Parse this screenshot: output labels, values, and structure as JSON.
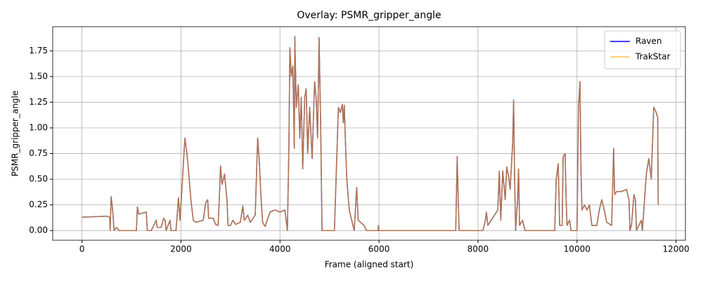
{
  "chart_data": {
    "type": "line",
    "title": "Overlay: PSMR_gripper_angle",
    "x_label": "Frame (aligned start)",
    "y_label": "PSMR_gripper_angle",
    "x": [
      0,
      500,
      560,
      570,
      590,
      620,
      650,
      700,
      750,
      1100,
      1120,
      1150,
      1300,
      1320,
      1400,
      1500,
      1520,
      1600,
      1650,
      1680,
      1700,
      1780,
      1800,
      1900,
      1950,
      1980,
      2000,
      2080,
      2120,
      2150,
      2200,
      2250,
      2300,
      2450,
      2500,
      2540,
      2560,
      2650,
      2700,
      2750,
      2770,
      2800,
      2830,
      2880,
      2930,
      2950,
      3000,
      3050,
      3100,
      3200,
      3250,
      3280,
      3350,
      3400,
      3500,
      3550,
      3580,
      3620,
      3650,
      3700,
      3800,
      3900,
      4000,
      4100,
      4150,
      4180,
      4200,
      4230,
      4260,
      4290,
      4300,
      4330,
      4370,
      4400,
      4430,
      4460,
      4500,
      4530,
      4560,
      4600,
      4650,
      4700,
      4730,
      4760,
      4790,
      4820,
      4850,
      5000,
      5100,
      5150,
      5180,
      5220,
      5260,
      5280,
      5300,
      5320,
      5350,
      5400,
      5450,
      5500,
      5550,
      5580,
      5700,
      5750,
      5980,
      5990,
      6000,
      6250,
      7550,
      7580,
      7600,
      7620,
      8100,
      8150,
      8170,
      8200,
      8400,
      8430,
      8460,
      8500,
      8550,
      8580,
      8620,
      8650,
      8700,
      8720,
      8740,
      8760,
      8800,
      8820,
      8840,
      8900,
      8950,
      9550,
      9580,
      9620,
      9650,
      9700,
      9720,
      9760,
      9780,
      9800,
      9850,
      9880,
      10000,
      10030,
      10060,
      10080,
      10100,
      10150,
      10200,
      10250,
      10300,
      10400,
      10450,
      10500,
      10550,
      10600,
      10700,
      10740,
      10760,
      10800,
      10900,
      11000,
      11050,
      11070,
      11100,
      11150,
      11180,
      11200,
      11300,
      11320,
      11400,
      11450,
      11500,
      11550,
      11600,
      11630,
      11640
    ],
    "series": [
      {
        "name": "Raven",
        "color": "#0000ff",
        "alpha": 1,
        "values": [
          0.13,
          0.14,
          0.13,
          0,
          0.33,
          0.2,
          0,
          0.03,
          0,
          0,
          0.23,
          0.16,
          0.18,
          0,
          0,
          0.1,
          0.03,
          0.03,
          0.12,
          0.1,
          0,
          0.1,
          0,
          0,
          0.32,
          0.1,
          0.25,
          0.9,
          0.75,
          0.6,
          0.3,
          0.1,
          0.08,
          0.1,
          0.27,
          0.3,
          0.12,
          0.12,
          0.06,
          0.05,
          0.25,
          0.63,
          0.45,
          0.55,
          0.3,
          0.05,
          0.05,
          0.1,
          0.06,
          0.08,
          0.24,
          0.1,
          0.15,
          0.08,
          0.15,
          0.9,
          0.7,
          0.3,
          0.08,
          0.04,
          0.18,
          0.2,
          0.18,
          0.2,
          0,
          0.8,
          1.78,
          1.5,
          1.6,
          0.8,
          1.89,
          1.2,
          1.42,
          0.9,
          1.3,
          0.6,
          1.3,
          1.38,
          0.75,
          1.2,
          0.7,
          1.45,
          1.3,
          0.9,
          1.88,
          1.1,
          0,
          0,
          0,
          0.75,
          1.2,
          1.15,
          1.23,
          1.05,
          1.22,
          0.9,
          0.5,
          0.2,
          0.1,
          0,
          0.42,
          0.1,
          0.05,
          0,
          0,
          0.05,
          0,
          0,
          0,
          0.72,
          0.3,
          0,
          0,
          0.1,
          0.18,
          0.05,
          0.2,
          0.58,
          0.1,
          0.58,
          0.3,
          0.62,
          0.52,
          0.4,
          0.85,
          1.27,
          0.5,
          0,
          0.3,
          0.6,
          0.05,
          0.1,
          0,
          0,
          0.5,
          0.65,
          0.05,
          0.05,
          0.72,
          0.75,
          0.3,
          0.05,
          0.1,
          0,
          0,
          1.2,
          1.45,
          0.6,
          0.2,
          0.25,
          0.2,
          0.25,
          0.05,
          0.05,
          0.2,
          0.3,
          0.2,
          0.08,
          0.05,
          0.8,
          0.35,
          0.38,
          0.38,
          0.4,
          0.3,
          0,
          0.05,
          0.35,
          0.3,
          0,
          0.1,
          0,
          0.55,
          0.7,
          0.5,
          1.2,
          1.15,
          1.1,
          0.25
        ]
      },
      {
        "name": "TrakStar",
        "color": "#ffa500",
        "alpha": 0.7,
        "values": [
          0.13,
          0.14,
          0.13,
          0,
          0.33,
          0.2,
          0,
          0.03,
          0,
          0,
          0.23,
          0.16,
          0.18,
          0,
          0,
          0.1,
          0.03,
          0.03,
          0.12,
          0.1,
          0,
          0.1,
          0,
          0,
          0.32,
          0.1,
          0.25,
          0.9,
          0.75,
          0.6,
          0.3,
          0.1,
          0.08,
          0.1,
          0.27,
          0.3,
          0.12,
          0.12,
          0.06,
          0.05,
          0.25,
          0.63,
          0.45,
          0.55,
          0.3,
          0.05,
          0.05,
          0.1,
          0.06,
          0.08,
          0.24,
          0.1,
          0.15,
          0.08,
          0.15,
          0.9,
          0.7,
          0.3,
          0.08,
          0.04,
          0.18,
          0.2,
          0.18,
          0.2,
          0,
          0.8,
          1.78,
          1.5,
          1.6,
          0.8,
          1.89,
          1.2,
          1.42,
          0.9,
          1.3,
          0.6,
          1.3,
          1.38,
          0.75,
          1.2,
          0.7,
          1.45,
          1.3,
          0.9,
          1.88,
          1.1,
          0,
          0,
          0,
          0.75,
          1.2,
          1.15,
          1.23,
          1.05,
          1.22,
          0.9,
          0.5,
          0.2,
          0.1,
          0,
          0.42,
          0.1,
          0.05,
          0,
          0,
          0.05,
          0,
          0,
          0,
          0.72,
          0.3,
          0,
          0,
          0.1,
          0.18,
          0.05,
          0.2,
          0.58,
          0.1,
          0.58,
          0.3,
          0.62,
          0.52,
          0.4,
          0.85,
          1.27,
          0.5,
          0,
          0.3,
          0.6,
          0.05,
          0.1,
          0,
          0,
          0.5,
          0.65,
          0.05,
          0.05,
          0.72,
          0.75,
          0.3,
          0.05,
          0.1,
          0,
          0,
          1.2,
          1.45,
          0.6,
          0.2,
          0.25,
          0.2,
          0.25,
          0.05,
          0.05,
          0.2,
          0.3,
          0.2,
          0.08,
          0.05,
          0.8,
          0.35,
          0.38,
          0.38,
          0.4,
          0.3,
          0,
          0.05,
          0.35,
          0.3,
          0,
          0.1,
          0,
          0.55,
          0.7,
          0.5,
          1.2,
          1.15,
          1.1,
          0.25
        ]
      }
    ],
    "xlim": [
      -590,
      12190
    ],
    "ylim": [
      -0.0945,
      1.985
    ],
    "xticks": [
      0,
      2000,
      4000,
      6000,
      8000,
      10000,
      12000
    ],
    "yticks": [
      {
        "value": 0,
        "label": "0.00"
      },
      {
        "value": 0.25,
        "label": "0.25"
      },
      {
        "value": 0.5,
        "label": "0.50"
      },
      {
        "value": 0.75,
        "label": "0.75"
      },
      {
        "value": 1,
        "label": "1.00"
      },
      {
        "value": 1.25,
        "label": "1.25"
      },
      {
        "value": 1.5,
        "label": "1.50"
      },
      {
        "value": 1.75,
        "label": "1.75"
      }
    ],
    "grid": true,
    "legend": "upper right"
  }
}
